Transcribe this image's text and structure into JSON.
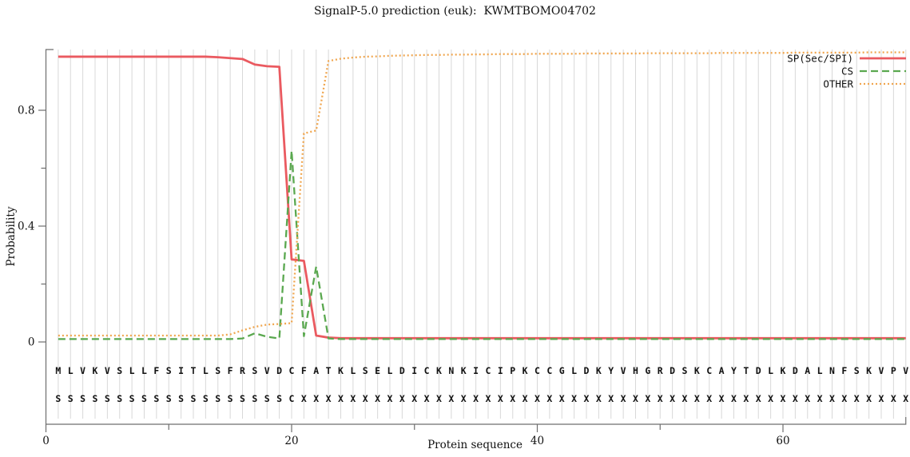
{
  "title": "SignalP-5.0 prediction (euk):  KWMTBOMO04702",
  "axes": {
    "ylabel": "Probability",
    "xlabel": "Protein sequence",
    "ytick_labels": [
      "0",
      "0.4",
      "0.8"
    ],
    "ytick_values": [
      0,
      0.4,
      0.8
    ],
    "yminor_values": [
      0.2,
      0.6
    ],
    "xtick_labels": [
      "0",
      "20",
      "40",
      "60"
    ],
    "xtick_values": [
      0,
      20,
      40,
      60
    ],
    "xminor_values": [
      10,
      30,
      50
    ]
  },
  "legend": [
    {
      "label": "SP(Sec/SPI)",
      "color": "#ea5a60",
      "style": "solid"
    },
    {
      "label": "CS",
      "color": "#5aa84f",
      "style": "dashed"
    },
    {
      "label": "OTHER",
      "color": "#f0a64f",
      "style": "dotted"
    }
  ],
  "sequence_row": "MLVKVSLLFSITLSFRSVDCFATKLSELDICKNKICIPKCCGLDKYVHGRDSKCAYTDLKDALNFSKVPV",
  "annotation_row": "SSSSSSSSSSSSSSSSSSSCXXXXXXXXXXXXXXXXXXXXXXXXXXXXXXXXXXXXXXXXXXXXXXXXXX",
  "colors": {
    "grid": "#d8d8d8",
    "axis": "#6e6e6e",
    "text": "#111111",
    "letters": "#1f1f1f"
  },
  "chart_data": {
    "type": "line",
    "title": "SignalP-5.0 prediction (euk):  KWMTBOMO04702",
    "xlabel": "Protein sequence",
    "ylabel": "Probability",
    "x_start": 1,
    "x_step": 1,
    "x_range": [
      1,
      70
    ],
    "xlim": [
      0,
      70.5
    ],
    "ylim": [
      0,
      1.0
    ],
    "xticks": [
      0,
      20,
      40,
      60
    ],
    "yticks": [
      0,
      0.4,
      0.8
    ],
    "grid": "vertical-line-per-residue",
    "legend_position": "top-right",
    "series": [
      {
        "name": "SP(Sec/SPI)",
        "color": "#ea5a60",
        "style": "solid",
        "values": [
          0.985,
          0.985,
          0.985,
          0.985,
          0.985,
          0.985,
          0.985,
          0.985,
          0.985,
          0.985,
          0.985,
          0.985,
          0.985,
          0.983,
          0.98,
          0.977,
          0.958,
          0.952,
          0.95,
          0.285,
          0.28,
          0.022,
          0.015,
          0.013,
          0.013,
          0.013,
          0.013,
          0.013,
          0.013,
          0.013,
          0.013,
          0.013,
          0.013,
          0.013,
          0.013,
          0.013,
          0.013,
          0.013,
          0.013,
          0.013,
          0.013,
          0.013,
          0.013,
          0.013,
          0.013,
          0.013,
          0.013,
          0.013,
          0.013,
          0.013,
          0.013,
          0.013,
          0.013,
          0.013,
          0.013,
          0.013,
          0.013,
          0.013,
          0.013,
          0.013,
          0.013,
          0.013,
          0.013,
          0.013,
          0.013,
          0.013,
          0.013,
          0.013,
          0.013,
          0.013
        ]
      },
      {
        "name": "CS",
        "color": "#5aa84f",
        "style": "dashed",
        "values": [
          0.01,
          0.01,
          0.01,
          0.01,
          0.01,
          0.01,
          0.01,
          0.01,
          0.01,
          0.01,
          0.01,
          0.01,
          0.01,
          0.01,
          0.01,
          0.012,
          0.03,
          0.018,
          0.012,
          0.66,
          0.02,
          0.26,
          0.012,
          0.01,
          0.01,
          0.01,
          0.01,
          0.01,
          0.01,
          0.01,
          0.01,
          0.01,
          0.01,
          0.01,
          0.01,
          0.01,
          0.01,
          0.01,
          0.01,
          0.01,
          0.01,
          0.01,
          0.01,
          0.01,
          0.01,
          0.01,
          0.01,
          0.01,
          0.01,
          0.01,
          0.01,
          0.01,
          0.01,
          0.01,
          0.01,
          0.01,
          0.01,
          0.01,
          0.01,
          0.01,
          0.01,
          0.01,
          0.01,
          0.01,
          0.01,
          0.01,
          0.01,
          0.01,
          0.01,
          0.01
        ]
      },
      {
        "name": "OTHER",
        "color": "#f0a64f",
        "style": "dotted",
        "values": [
          0.022,
          0.022,
          0.022,
          0.022,
          0.022,
          0.022,
          0.022,
          0.022,
          0.022,
          0.022,
          0.022,
          0.022,
          0.022,
          0.022,
          0.026,
          0.04,
          0.052,
          0.06,
          0.062,
          0.065,
          0.72,
          0.73,
          0.97,
          0.978,
          0.982,
          0.985,
          0.986,
          0.988,
          0.989,
          0.99,
          0.991,
          0.991,
          0.992,
          0.992,
          0.993,
          0.993,
          0.994,
          0.994,
          0.994,
          0.995,
          0.995,
          0.995,
          0.995,
          0.996,
          0.996,
          0.996,
          0.996,
          0.996,
          0.997,
          0.997,
          0.997,
          0.997,
          0.997,
          0.997,
          0.998,
          0.998,
          0.998,
          0.998,
          0.998,
          0.998,
          0.999,
          0.999,
          0.999,
          0.999,
          0.999,
          0.999,
          1.0,
          1.0,
          1.0,
          1.0
        ]
      }
    ]
  }
}
